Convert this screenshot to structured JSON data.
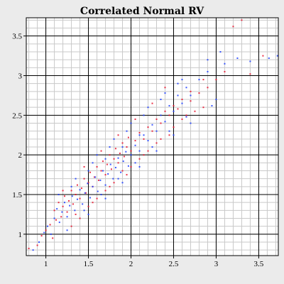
{
  "chart_data": {
    "type": "scatter",
    "title": "Correlated Normal RV",
    "xlabel": "",
    "ylabel": "",
    "xlim": [
      0.77,
      3.73
    ],
    "ylim": [
      0.73,
      3.73
    ],
    "x_ticks": [
      1,
      1.5,
      2,
      2.5,
      3,
      3.5
    ],
    "y_ticks": [
      1,
      1.5,
      2,
      2.5,
      3,
      3.5
    ],
    "x_tick_labels": [
      "1",
      "1.5",
      "2",
      "2.5",
      "3",
      "3.5"
    ],
    "y_tick_labels": [
      "1",
      "1.5",
      "2",
      "2.5",
      "3",
      "3.5"
    ],
    "minor_tick_step": 0.1,
    "grid": true,
    "legend": "none",
    "series": [
      {
        "color": "#e8102a",
        "points": [
          [
            0.8,
            0.82
          ],
          [
            0.9,
            0.86
          ],
          [
            0.95,
            0.98
          ],
          [
            1.0,
            1.05
          ],
          [
            1.05,
            1.12
          ],
          [
            1.08,
            0.95
          ],
          [
            1.1,
            1.3
          ],
          [
            1.12,
            1.18
          ],
          [
            1.15,
            1.4
          ],
          [
            1.18,
            1.22
          ],
          [
            1.2,
            1.35
          ],
          [
            1.22,
            1.48
          ],
          [
            1.25,
            1.28
          ],
          [
            1.27,
            1.42
          ],
          [
            1.3,
            1.55
          ],
          [
            1.32,
            1.38
          ],
          [
            1.35,
            1.5
          ],
          [
            1.37,
            1.62
          ],
          [
            1.4,
            1.45
          ],
          [
            1.42,
            1.58
          ],
          [
            1.45,
            1.7
          ],
          [
            1.47,
            1.52
          ],
          [
            1.5,
            1.65
          ],
          [
            1.52,
            1.78
          ],
          [
            1.55,
            1.6
          ],
          [
            1.57,
            1.72
          ],
          [
            1.6,
            1.85
          ],
          [
            1.62,
            1.68
          ],
          [
            1.65,
            1.8
          ],
          [
            1.67,
            1.92
          ],
          [
            1.7,
            1.75
          ],
          [
            1.72,
            1.88
          ],
          [
            1.75,
            2.0
          ],
          [
            1.77,
            1.82
          ],
          [
            1.8,
            1.95
          ],
          [
            1.82,
            2.08
          ],
          [
            1.85,
            1.9
          ],
          [
            1.87,
            2.02
          ],
          [
            1.9,
            2.15
          ],
          [
            1.92,
            1.98
          ],
          [
            1.95,
            2.1
          ],
          [
            1.97,
            2.22
          ],
          [
            2.0,
            2.05
          ],
          [
            2.05,
            2.18
          ],
          [
            2.1,
            2.28
          ],
          [
            2.15,
            2.2
          ],
          [
            2.2,
            2.35
          ],
          [
            2.25,
            2.3
          ],
          [
            2.3,
            2.45
          ],
          [
            2.35,
            2.4
          ],
          [
            2.4,
            2.55
          ],
          [
            2.45,
            2.5
          ],
          [
            2.5,
            2.62
          ],
          [
            2.55,
            2.58
          ],
          [
            2.6,
            2.7
          ],
          [
            2.7,
            2.68
          ],
          [
            2.8,
            2.78
          ],
          [
            2.9,
            2.85
          ],
          [
            3.0,
            2.95
          ],
          [
            3.1,
            3.05
          ],
          [
            3.2,
            3.62
          ],
          [
            3.3,
            3.7
          ],
          [
            3.4,
            3.02
          ],
          [
            3.55,
            3.25
          ],
          [
            1.3,
            1.1
          ],
          [
            1.5,
            1.35
          ],
          [
            1.7,
            1.55
          ],
          [
            1.9,
            1.8
          ],
          [
            2.1,
            1.95
          ],
          [
            2.3,
            2.15
          ],
          [
            1.2,
            1.55
          ],
          [
            1.45,
            1.85
          ],
          [
            1.65,
            2.05
          ],
          [
            1.85,
            2.25
          ],
          [
            2.05,
            2.45
          ],
          [
            2.25,
            2.65
          ],
          [
            2.4,
            2.85
          ],
          [
            1.35,
            1.25
          ],
          [
            1.6,
            1.45
          ],
          [
            1.8,
            1.65
          ],
          [
            2.0,
            1.85
          ],
          [
            2.2,
            2.05
          ],
          [
            2.45,
            2.25
          ],
          [
            2.6,
            2.45
          ],
          [
            2.75,
            2.55
          ],
          [
            2.85,
            2.6
          ],
          [
            1.4,
            1.2
          ],
          [
            1.55,
            1.4
          ],
          [
            1.75,
            1.6
          ],
          [
            1.95,
            1.75
          ],
          [
            2.15,
            2.0
          ],
          [
            2.35,
            2.2
          ],
          [
            2.5,
            2.35
          ],
          [
            2.65,
            2.5
          ],
          [
            2.7,
            2.8
          ],
          [
            2.85,
            2.95
          ]
        ]
      },
      {
        "color": "#1a3cff",
        "points": [
          [
            0.85,
            0.8
          ],
          [
            0.92,
            0.9
          ],
          [
            0.98,
            1.02
          ],
          [
            1.02,
            1.1
          ],
          [
            1.06,
            1.0
          ],
          [
            1.1,
            1.2
          ],
          [
            1.13,
            1.32
          ],
          [
            1.16,
            1.15
          ],
          [
            1.19,
            1.28
          ],
          [
            1.22,
            1.4
          ],
          [
            1.25,
            1.22
          ],
          [
            1.28,
            1.36
          ],
          [
            1.31,
            1.48
          ],
          [
            1.34,
            1.3
          ],
          [
            1.37,
            1.44
          ],
          [
            1.4,
            1.56
          ],
          [
            1.43,
            1.38
          ],
          [
            1.46,
            1.52
          ],
          [
            1.49,
            1.64
          ],
          [
            1.52,
            1.46
          ],
          [
            1.55,
            1.6
          ],
          [
            1.58,
            1.72
          ],
          [
            1.61,
            1.54
          ],
          [
            1.64,
            1.68
          ],
          [
            1.67,
            1.8
          ],
          [
            1.7,
            1.62
          ],
          [
            1.73,
            1.76
          ],
          [
            1.76,
            1.88
          ],
          [
            1.79,
            1.7
          ],
          [
            1.82,
            1.84
          ],
          [
            1.85,
            1.96
          ],
          [
            1.88,
            1.78
          ],
          [
            1.91,
            1.92
          ],
          [
            1.94,
            2.04
          ],
          [
            1.97,
            1.86
          ],
          [
            2.0,
            2.0
          ],
          [
            2.05,
            2.12
          ],
          [
            2.1,
            2.05
          ],
          [
            2.15,
            2.25
          ],
          [
            2.2,
            2.18
          ],
          [
            2.25,
            2.38
          ],
          [
            2.3,
            2.3
          ],
          [
            2.35,
            2.5
          ],
          [
            2.4,
            2.42
          ],
          [
            2.45,
            2.62
          ],
          [
            2.5,
            2.55
          ],
          [
            2.55,
            2.75
          ],
          [
            2.6,
            2.65
          ],
          [
            2.65,
            2.85
          ],
          [
            2.7,
            2.75
          ],
          [
            2.8,
            2.95
          ],
          [
            2.9,
            3.05
          ],
          [
            3.0,
            2.7
          ],
          [
            3.1,
            3.15
          ],
          [
            3.25,
            3.22
          ],
          [
            3.4,
            3.18
          ],
          [
            3.62,
            3.22
          ],
          [
            3.72,
            3.25
          ],
          [
            2.9,
            3.2
          ],
          [
            3.05,
            3.3
          ],
          [
            1.25,
            1.05
          ],
          [
            1.45,
            1.3
          ],
          [
            1.65,
            1.5
          ],
          [
            1.85,
            1.7
          ],
          [
            2.05,
            1.9
          ],
          [
            2.25,
            2.1
          ],
          [
            2.45,
            2.3
          ],
          [
            2.65,
            2.48
          ],
          [
            1.15,
            1.5
          ],
          [
            1.35,
            1.7
          ],
          [
            1.55,
            1.9
          ],
          [
            1.75,
            2.1
          ],
          [
            1.95,
            2.3
          ],
          [
            2.15,
            2.5
          ],
          [
            2.35,
            2.7
          ],
          [
            2.55,
            2.9
          ],
          [
            1.5,
            1.25
          ],
          [
            1.7,
            1.45
          ],
          [
            1.9,
            1.65
          ],
          [
            2.1,
            1.85
          ],
          [
            2.3,
            2.05
          ],
          [
            2.5,
            2.25
          ],
          [
            2.7,
            2.4
          ],
          [
            2.95,
            2.62
          ],
          [
            1.6,
            2.0
          ],
          [
            1.8,
            2.2
          ],
          [
            2.0,
            2.4
          ],
          [
            2.2,
            2.6
          ],
          [
            2.4,
            2.78
          ],
          [
            2.6,
            2.95
          ],
          [
            1.3,
            1.6
          ],
          [
            1.5,
            1.8
          ],
          [
            1.7,
            1.95
          ],
          [
            1.9,
            2.1
          ],
          [
            2.1,
            2.25
          ]
        ]
      }
    ]
  }
}
